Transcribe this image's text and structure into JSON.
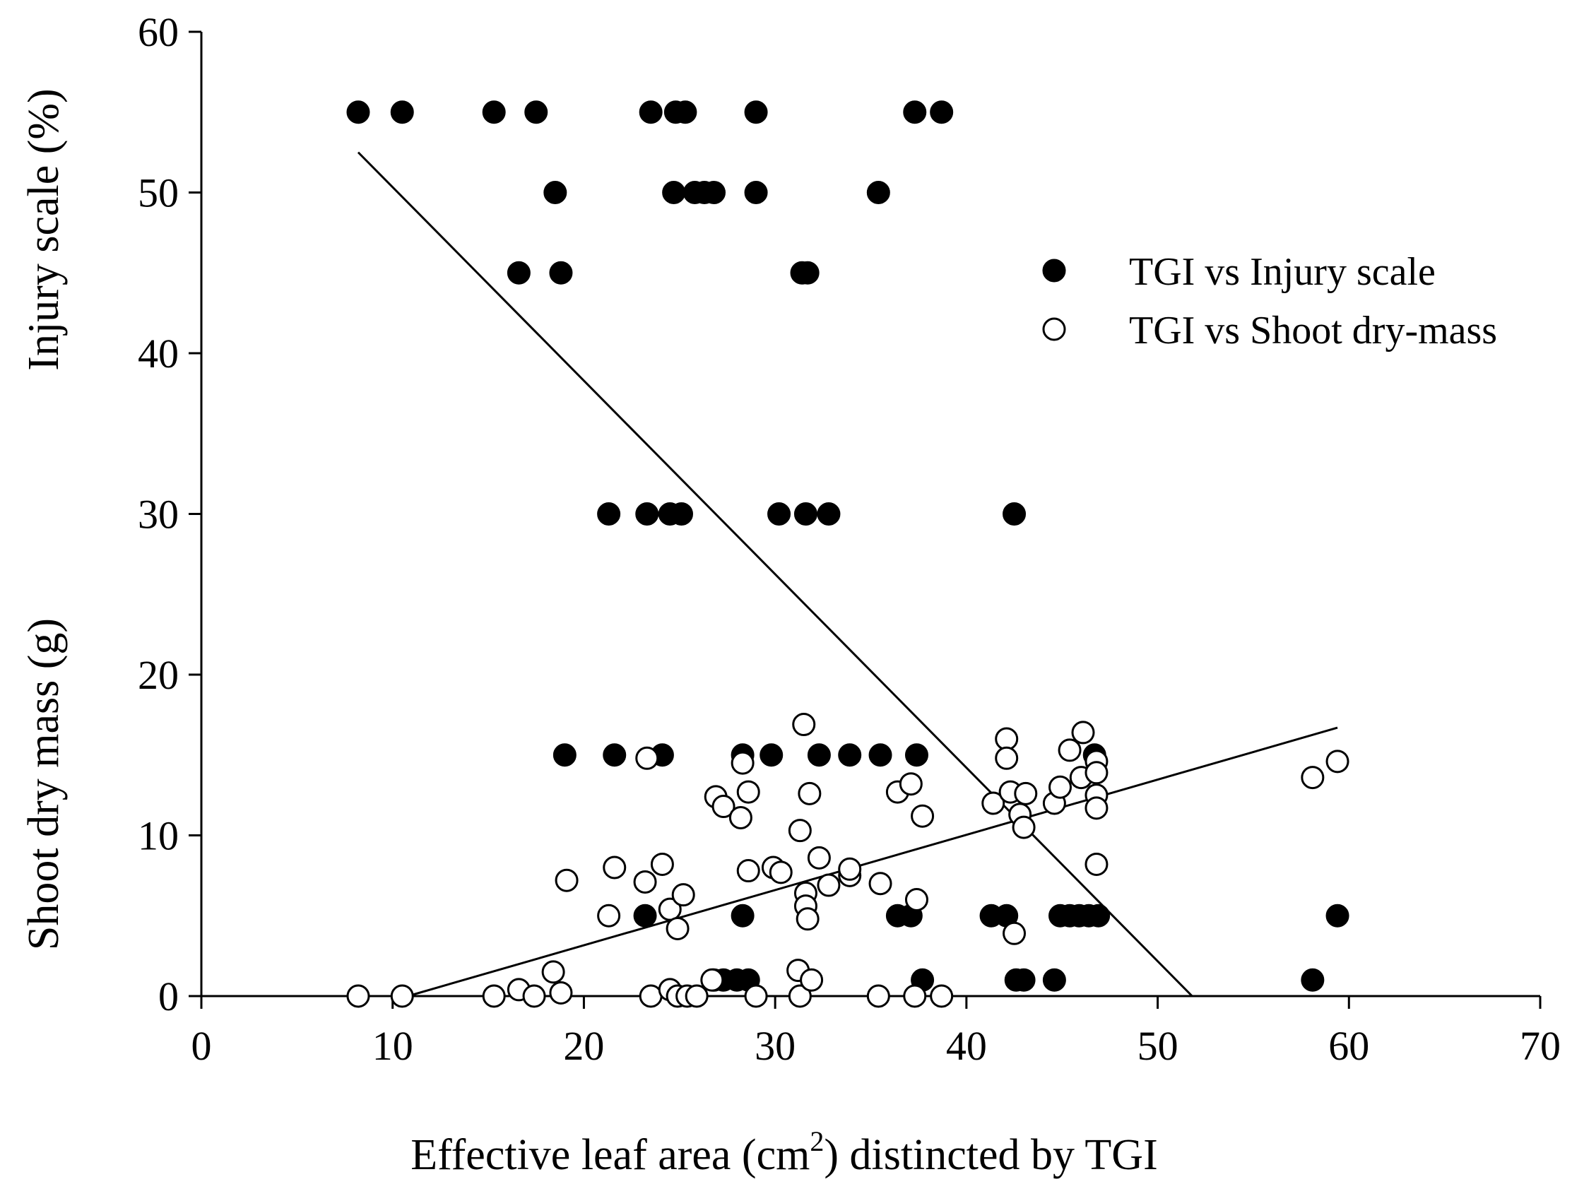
{
  "chart_data": {
    "type": "scatter",
    "xlabel_main": "Effective leaf  area (cm",
    "xlabel_sup": "2",
    "xlabel_tail": ") distincted by TGI",
    "ylabel_upper": "Injury scale (%)",
    "ylabel_lower": "Shoot dry mass (g)",
    "xlim": [
      0,
      70
    ],
    "ylim": [
      0,
      60
    ],
    "x_ticks": [
      0,
      10,
      20,
      30,
      40,
      50,
      60,
      70
    ],
    "y_ticks": [
      0,
      10,
      20,
      30,
      40,
      50,
      60
    ],
    "legend_position": "upper-right",
    "series": [
      {
        "name": "TGI vs Injury scale",
        "marker": "filled-circle",
        "color": "#000000",
        "points": [
          [
            8.2,
            55
          ],
          [
            10.5,
            55
          ],
          [
            15.3,
            55
          ],
          [
            17.5,
            55
          ],
          [
            23.5,
            55
          ],
          [
            24.8,
            55
          ],
          [
            25.3,
            55
          ],
          [
            29,
            55
          ],
          [
            37.3,
            55
          ],
          [
            38.7,
            55
          ],
          [
            18.5,
            50
          ],
          [
            24.7,
            50
          ],
          [
            25.8,
            50
          ],
          [
            26.3,
            50
          ],
          [
            26.8,
            50
          ],
          [
            29,
            50
          ],
          [
            35.4,
            50
          ],
          [
            16.6,
            45
          ],
          [
            18.8,
            45
          ],
          [
            31.4,
            45
          ],
          [
            31.7,
            45
          ],
          [
            21.3,
            30
          ],
          [
            23.3,
            30
          ],
          [
            24.5,
            30
          ],
          [
            25.1,
            30
          ],
          [
            30.2,
            30
          ],
          [
            31.6,
            30
          ],
          [
            32.8,
            30
          ],
          [
            42.5,
            30
          ],
          [
            19,
            15
          ],
          [
            21.6,
            15
          ],
          [
            24.1,
            15
          ],
          [
            28.3,
            15
          ],
          [
            29.8,
            15
          ],
          [
            32.3,
            15
          ],
          [
            33.9,
            15
          ],
          [
            35.5,
            15
          ],
          [
            37.4,
            15
          ],
          [
            46.7,
            15
          ],
          [
            23.2,
            5
          ],
          [
            28.3,
            5
          ],
          [
            36.4,
            5
          ],
          [
            37.1,
            5
          ],
          [
            41.3,
            5
          ],
          [
            42.1,
            5
          ],
          [
            44.9,
            5
          ],
          [
            45.4,
            5
          ],
          [
            45.9,
            5
          ],
          [
            46.4,
            5
          ],
          [
            46.9,
            5
          ],
          [
            59.4,
            5
          ],
          [
            26.8,
            1
          ],
          [
            27.3,
            1
          ],
          [
            28,
            1
          ],
          [
            28.6,
            1
          ],
          [
            37.7,
            1
          ],
          [
            42.6,
            1
          ],
          [
            43,
            1
          ],
          [
            44.6,
            1
          ],
          [
            58.1,
            1
          ]
        ]
      },
      {
        "name": "TGI vs Shoot dry-mass",
        "marker": "open-circle",
        "color": "#000000",
        "points": [
          [
            8.2,
            0
          ],
          [
            10.5,
            0
          ],
          [
            15.3,
            0
          ],
          [
            16.6,
            0.4
          ],
          [
            17.4,
            0
          ],
          [
            18.4,
            1.5
          ],
          [
            18.8,
            0.2
          ],
          [
            23.5,
            0
          ],
          [
            24.5,
            0.4
          ],
          [
            24.9,
            0
          ],
          [
            25.4,
            0
          ],
          [
            25.9,
            0
          ],
          [
            26.7,
            1
          ],
          [
            29,
            0
          ],
          [
            31.2,
            1.6
          ],
          [
            31.3,
            0
          ],
          [
            31.9,
            1
          ],
          [
            35.4,
            0
          ],
          [
            37.3,
            0
          ],
          [
            38.7,
            0
          ],
          [
            19.1,
            7.2
          ],
          [
            21.3,
            5
          ],
          [
            21.6,
            8
          ],
          [
            23.2,
            7.1
          ],
          [
            23.3,
            14.8
          ],
          [
            24.1,
            8.2
          ],
          [
            24.5,
            5.4
          ],
          [
            24.9,
            4.2
          ],
          [
            25.2,
            6.3
          ],
          [
            26.9,
            12.4
          ],
          [
            27.3,
            11.8
          ],
          [
            28.2,
            11.1
          ],
          [
            28.3,
            14.5
          ],
          [
            28.6,
            7.8
          ],
          [
            28.6,
            12.7
          ],
          [
            29.9,
            8
          ],
          [
            30.3,
            7.7
          ],
          [
            31.3,
            10.3
          ],
          [
            31.5,
            16.9
          ],
          [
            31.6,
            6.4
          ],
          [
            31.6,
            5.6
          ],
          [
            31.7,
            4.8
          ],
          [
            31.8,
            12.6
          ],
          [
            32.3,
            8.6
          ],
          [
            32.8,
            6.9
          ],
          [
            33.9,
            7.5
          ],
          [
            33.9,
            7.9
          ],
          [
            35.5,
            7
          ],
          [
            36.4,
            12.7
          ],
          [
            37.1,
            13.2
          ],
          [
            37.4,
            6
          ],
          [
            37.7,
            11.2
          ],
          [
            41.4,
            12
          ],
          [
            42.1,
            16
          ],
          [
            42.1,
            14.8
          ],
          [
            42.3,
            12.7
          ],
          [
            42.5,
            3.9
          ],
          [
            42.8,
            11.3
          ],
          [
            43,
            10.5
          ],
          [
            43.1,
            12.6
          ],
          [
            44.6,
            12
          ],
          [
            44.9,
            13
          ],
          [
            45.4,
            15.3
          ],
          [
            46,
            13.6
          ],
          [
            46.1,
            16.4
          ],
          [
            46.8,
            14.6
          ],
          [
            46.8,
            13.9
          ],
          [
            46.8,
            12.5
          ],
          [
            46.8,
            11.7
          ],
          [
            46.8,
            8.2
          ],
          [
            58.1,
            13.6
          ],
          [
            59.4,
            14.6
          ]
        ]
      }
    ],
    "fit_lines": [
      {
        "name": "injury-fit",
        "x1": 8.2,
        "y1": 52.5,
        "x2": 51.8,
        "y2": 0
      },
      {
        "name": "shoot-fit",
        "x1": 10.8,
        "y1": 0,
        "x2": 59.4,
        "y2": 16.7
      }
    ]
  }
}
